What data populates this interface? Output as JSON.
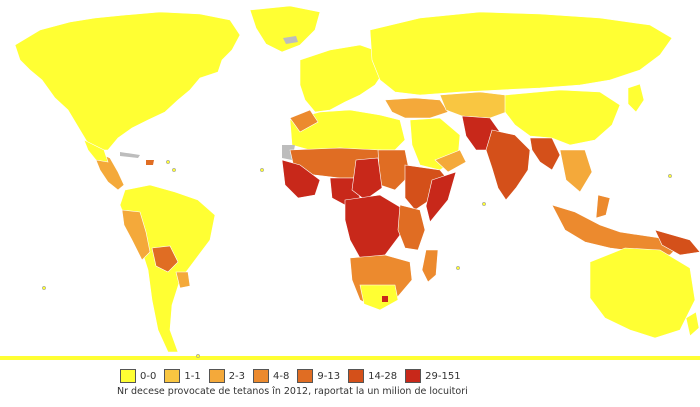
{
  "legend": {
    "items": [
      {
        "label": "0-0",
        "color": "#ffff33"
      },
      {
        "label": "1-1",
        "color": "#f9c641"
      },
      {
        "label": "2-3",
        "color": "#f4a93a"
      },
      {
        "label": "4-8",
        "color": "#ec8a2e"
      },
      {
        "label": "9-13",
        "color": "#e06d23"
      },
      {
        "label": "14-28",
        "color": "#d4501a"
      },
      {
        "label": "29-151",
        "color": "#c8281a"
      }
    ]
  },
  "caption": "Nr decese provocate de tetanos în 2012, raportat la un milion de locuitori",
  "colors": {
    "ocean": "#ffffff",
    "no_data": "#bdbdbd",
    "border": "#ffffff"
  }
}
